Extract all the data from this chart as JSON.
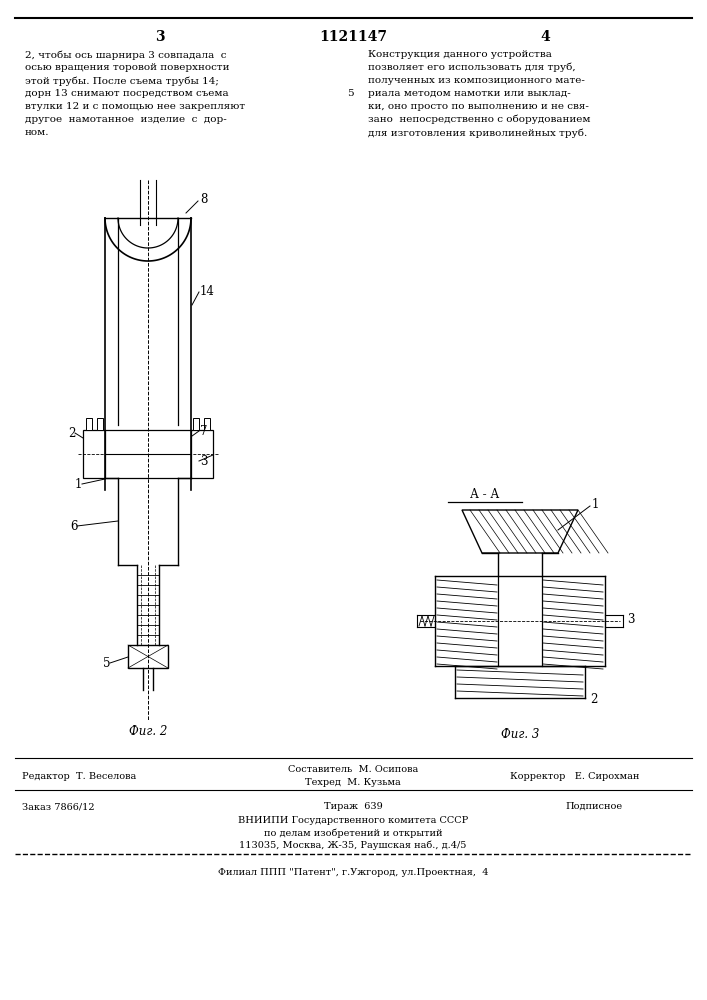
{
  "page_number_left": "3",
  "patent_number": "1121147",
  "page_number_right": "4",
  "text_left": "2, чтобы ось шарнира 3 совпадала  с\nосью вращения торовой поверхности\nэтой трубы. После съема трубы 14;\nдорн 13 снимают посредством съема\nвтулки 12 и с помощью нее закрепляют\nдругое  намотанное  изделие  с  дор-\nном.",
  "text_right": "Конструкция данного устройства\nпозволяет его использовать для труб,\nполученных из композиционного мате-\nриала методом намотки или выклад-\nки, оно просто по выполнению и не свя-\nзано  непосредственно с оборудованием\nдля изготовления криволинейных труб.",
  "line5_label": "5",
  "fig2_label": "Фиг. 2",
  "fig3_label": "Фиг. 3",
  "fig3_section": "А - А",
  "editor_line": "Редактор  Т. Веселова",
  "composer_line": "Составитель  М. Осипова",
  "techred_line": "Техред  М. Кузьма",
  "corrector_line": "Корректор   Е. Сирохман",
  "order_line": "Заказ 7866/12",
  "tirazh_line": "Тираж  639",
  "podpisnoe_line": "Подписное",
  "vniishi_line1": "ВНИИПИ Государственного комитета СССР",
  "vniishi_line2": "по делам изобретений и открытий",
  "vniishi_line3": "113035, Москва, Ж-35, Раушская наб., д.4/5",
  "filial_line": "Филиал ППП \"Патент\", г.Ужгород, ул.Проектная,  4",
  "bg_color": "#ffffff",
  "text_color": "#000000",
  "line_color": "#000000"
}
